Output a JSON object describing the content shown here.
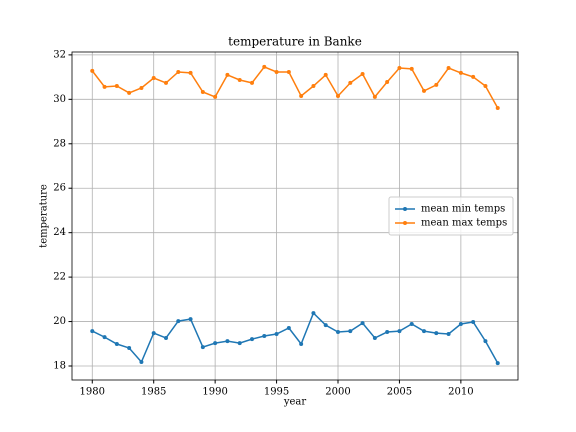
{
  "chart_data": {
    "type": "line",
    "title": "temperature in Banke",
    "xlabel": "year",
    "ylabel": "temperature",
    "x": [
      1980,
      1981,
      1982,
      1983,
      1984,
      1985,
      1986,
      1987,
      1988,
      1989,
      1990,
      1991,
      1992,
      1993,
      1994,
      1995,
      1996,
      1997,
      1998,
      1999,
      2000,
      2001,
      2002,
      2003,
      2004,
      2005,
      2006,
      2007,
      2008,
      2009,
      2010,
      2011,
      2012,
      2013
    ],
    "series": [
      {
        "name": "mean min temps",
        "color": "#1f77b4",
        "values": [
          19.57,
          19.3,
          18.99,
          18.81,
          18.18,
          19.48,
          19.26,
          20.02,
          20.11,
          18.85,
          19.03,
          19.12,
          19.03,
          19.21,
          19.35,
          19.44,
          19.71,
          18.99,
          20.38,
          19.84,
          19.53,
          19.57,
          19.93,
          19.26,
          19.53,
          19.57,
          19.89,
          19.57,
          19.48,
          19.44,
          19.89,
          19.98,
          19.12,
          18.13
        ]
      },
      {
        "name": "mean max temps",
        "color": "#ff7f0e",
        "values": [
          31.28,
          30.56,
          30.6,
          30.29,
          30.51,
          30.96,
          30.74,
          31.23,
          31.19,
          30.33,
          30.11,
          31.1,
          30.87,
          30.74,
          31.46,
          31.23,
          31.23,
          30.15,
          30.6,
          31.1,
          30.15,
          30.74,
          31.14,
          30.11,
          30.78,
          31.41,
          31.37,
          30.38,
          30.65,
          31.41,
          31.19,
          31.01,
          30.6,
          29.61
        ]
      }
    ],
    "xlim": [
      1978.35,
      2014.65
    ],
    "xticks": [
      1980,
      1985,
      1990,
      1995,
      2000,
      2005,
      2010
    ],
    "ylim": [
      17.37,
      32.13
    ],
    "yticks": [
      18,
      20,
      22,
      24,
      26,
      28,
      30,
      32
    ],
    "grid": true,
    "legend": "center right"
  }
}
